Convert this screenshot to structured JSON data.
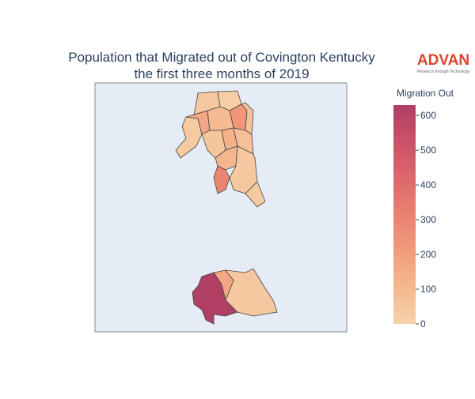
{
  "chart_data": {
    "type": "choropleth",
    "title": [
      "Population that Migrated out of Covington Kentucky",
      "the first three months of 2019"
    ],
    "colorbar_title": "Migration Out",
    "colorscale": [
      "#f6d2a9",
      "#f5b78e",
      "#f19c7c",
      "#ea8171",
      "#dd686c",
      "#ca5268",
      "#b13f64"
    ],
    "zlim": [
      0,
      630
    ],
    "zticks": [
      0,
      100,
      200,
      300,
      400,
      500,
      600
    ],
    "values": [
      30,
      170,
      40,
      20,
      230,
      90,
      60,
      50,
      130,
      70,
      110,
      300,
      40,
      30,
      630,
      170,
      40
    ]
  },
  "logo": {
    "text": "ADVAN",
    "tagline": "Research through Technology"
  }
}
